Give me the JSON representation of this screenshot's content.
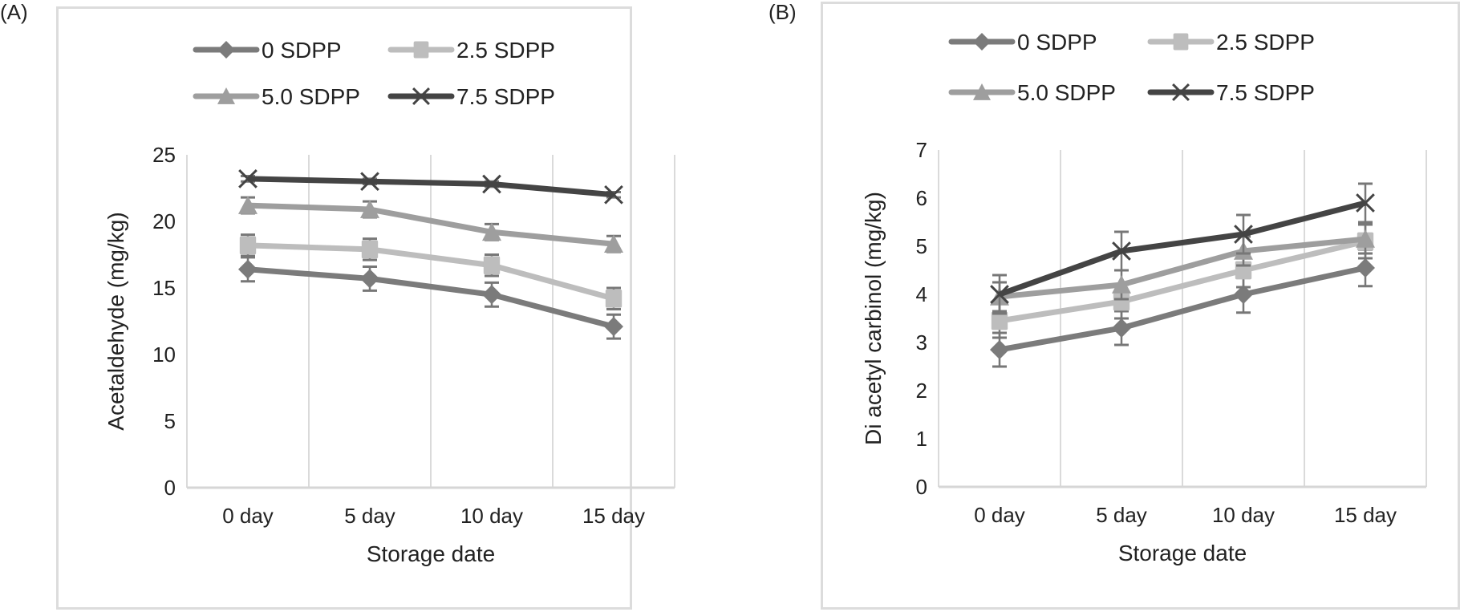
{
  "panels": [
    {
      "label": "(A)"
    },
    {
      "label": "(B)"
    }
  ],
  "chart_data": [
    {
      "type": "line",
      "panel": "(A)",
      "title": "",
      "xlabel": "Storage date",
      "ylabel": "Acetaldehyde (mg/kg)",
      "categories": [
        "0 day",
        "5 day",
        "10 day",
        "15 day"
      ],
      "ylim": [
        0,
        25
      ],
      "yticks": [
        0,
        5,
        10,
        15,
        20,
        25
      ],
      "grid": "vertical category dividers",
      "legend_position": "top",
      "series": [
        {
          "name": "0 SDPP",
          "marker": "diamond",
          "color": "#7b7b7b",
          "values": [
            16.4,
            15.7,
            14.5,
            12.1
          ],
          "error": [
            0.9,
            0.9,
            0.9,
            0.9
          ]
        },
        {
          "name": "2.5 SDPP",
          "marker": "square",
          "color": "#bdbdbd",
          "values": [
            18.2,
            17.9,
            16.7,
            14.2
          ],
          "error": [
            0.8,
            0.8,
            0.8,
            0.8
          ]
        },
        {
          "name": "5.0 SDPP",
          "marker": "triangle",
          "color": "#9e9e9e",
          "values": [
            21.2,
            20.9,
            19.2,
            18.3
          ],
          "error": [
            0.6,
            0.6,
            0.6,
            0.6
          ]
        },
        {
          "name": "7.5 SDPP",
          "marker": "x",
          "color": "#444444",
          "values": [
            23.2,
            23.0,
            22.8,
            22.0
          ],
          "error": [
            0.2,
            0.2,
            0.2,
            0.2
          ]
        }
      ]
    },
    {
      "type": "line",
      "panel": "(B)",
      "title": "",
      "xlabel": "Storage date",
      "ylabel": "Di acetyl carbinol (mg/kg)",
      "categories": [
        "0 day",
        "5 day",
        "10 day",
        "15 day"
      ],
      "ylim": [
        0,
        7
      ],
      "yticks": [
        0,
        1,
        2,
        3,
        4,
        5,
        6,
        7
      ],
      "grid": "vertical category dividers",
      "legend_position": "top",
      "series": [
        {
          "name": "0 SDPP",
          "marker": "diamond",
          "color": "#7b7b7b",
          "values": [
            2.85,
            3.3,
            4.0,
            4.55
          ],
          "error": [
            0.35,
            0.35,
            0.38,
            0.38
          ]
        },
        {
          "name": "2.5 SDPP",
          "marker": "square",
          "color": "#bdbdbd",
          "values": [
            3.45,
            3.85,
            4.5,
            5.1
          ],
          "error": [
            0.35,
            0.35,
            0.35,
            0.35
          ]
        },
        {
          "name": "5.0 SDPP",
          "marker": "triangle",
          "color": "#9e9e9e",
          "values": [
            3.95,
            4.2,
            4.9,
            5.15
          ],
          "error": [
            0.3,
            0.3,
            0.3,
            0.3
          ]
        },
        {
          "name": "7.5 SDPP",
          "marker": "x",
          "color": "#444444",
          "values": [
            4.0,
            4.9,
            5.25,
            5.9
          ],
          "error": [
            0.4,
            0.4,
            0.4,
            0.4
          ]
        }
      ]
    }
  ]
}
